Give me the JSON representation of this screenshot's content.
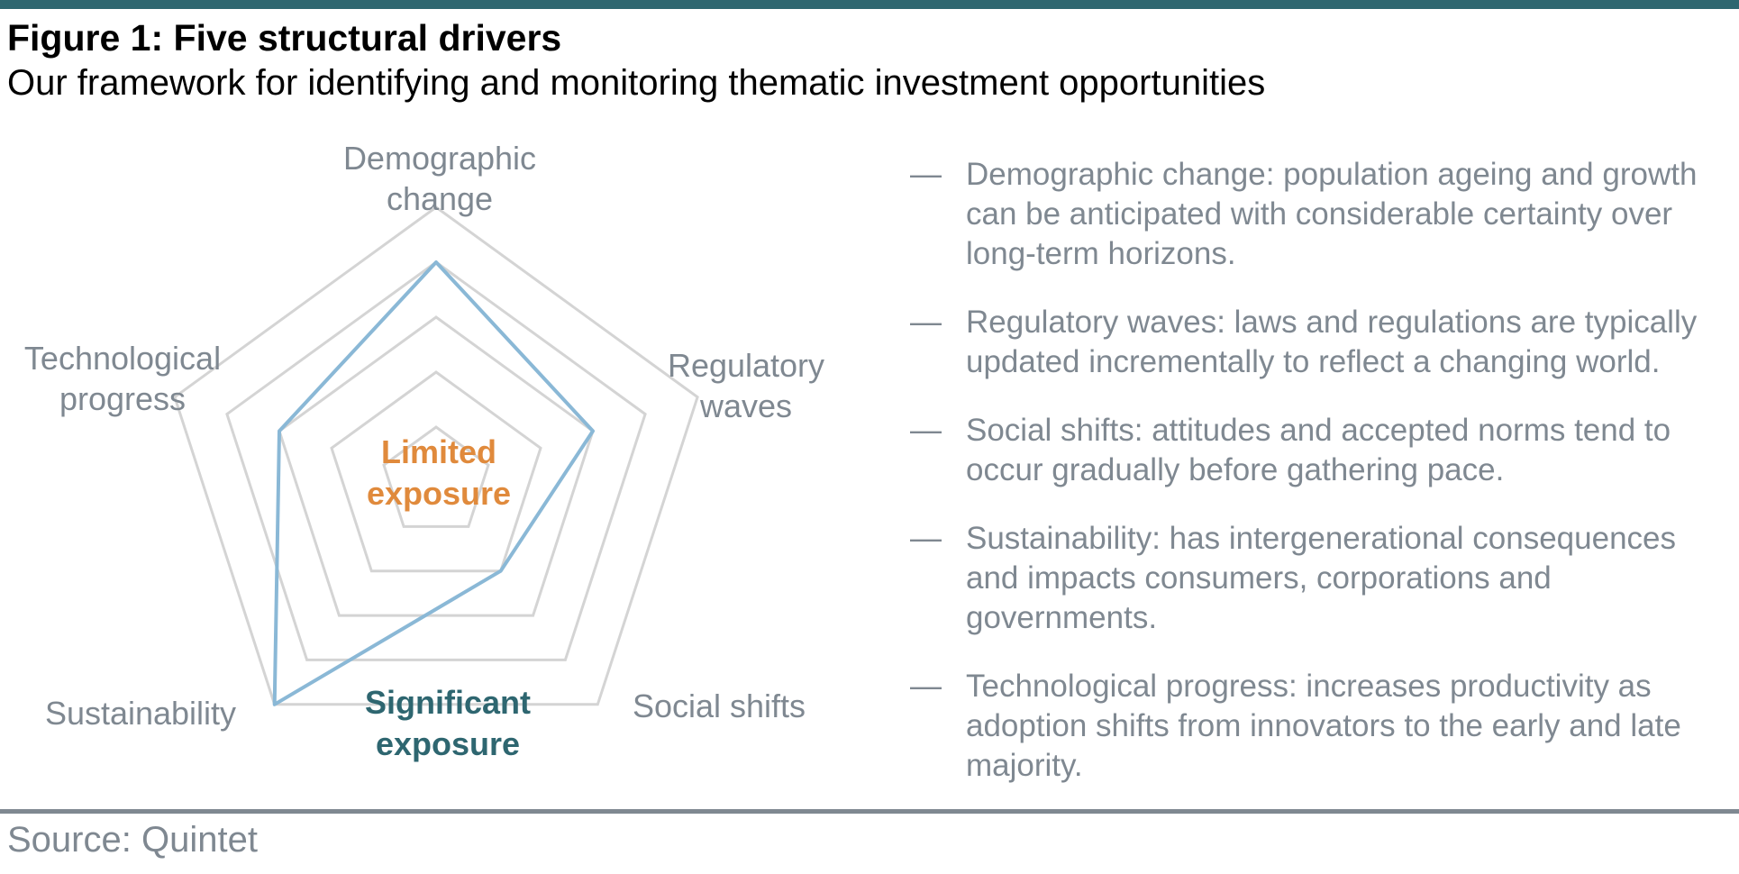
{
  "header": {
    "title": "Figure 1: Five structural drivers",
    "subtitle": "Our framework for identifying and monitoring thematic investment opportunities"
  },
  "chart_data": {
    "type": "radar",
    "title": "",
    "axes": [
      {
        "line1": "Demographic",
        "line2": "change"
      },
      {
        "line1": "Regulatory",
        "line2": "waves"
      },
      {
        "line1": "Social shifts",
        "line2": ""
      },
      {
        "line1": "Sustainability",
        "line2": ""
      },
      {
        "line1": "Technological",
        "line2": "progress"
      }
    ],
    "rings": 5,
    "range": [
      0,
      5
    ],
    "series": [
      {
        "values": [
          4,
          3,
          2,
          5,
          3
        ],
        "color": "#8ab8d6"
      }
    ],
    "grid_color": "#d4d4d4",
    "annotations": {
      "limited": {
        "line1": "Limited",
        "line2": "exposure",
        "color": "#e08a3c"
      },
      "significant": {
        "line1": "Significant",
        "line2": "exposure",
        "color": "#2e6670"
      }
    }
  },
  "drivers": [
    {
      "dash": "—",
      "text": "Demographic change: population ageing and growth can be anticipated with considerable certainty over long-term horizons."
    },
    {
      "dash": "—",
      "text": "Regulatory waves: laws and regulations are typically updated incrementally to reflect a changing world."
    },
    {
      "dash": "—",
      "text": "Social shifts: attitudes and accepted norms tend to occur gradually before gathering pace."
    },
    {
      "dash": "—",
      "text": "Sustainability: has intergenerational consequences and impacts consumers, corporations and governments."
    },
    {
      "dash": "—",
      "text": "Technological progress: increases productivity as adoption shifts from innovators to the early and late majority."
    }
  ],
  "footer": {
    "source": "Source: Quintet"
  },
  "colors": {
    "accent": "#2e6670",
    "muted_text": "#7f8891"
  }
}
